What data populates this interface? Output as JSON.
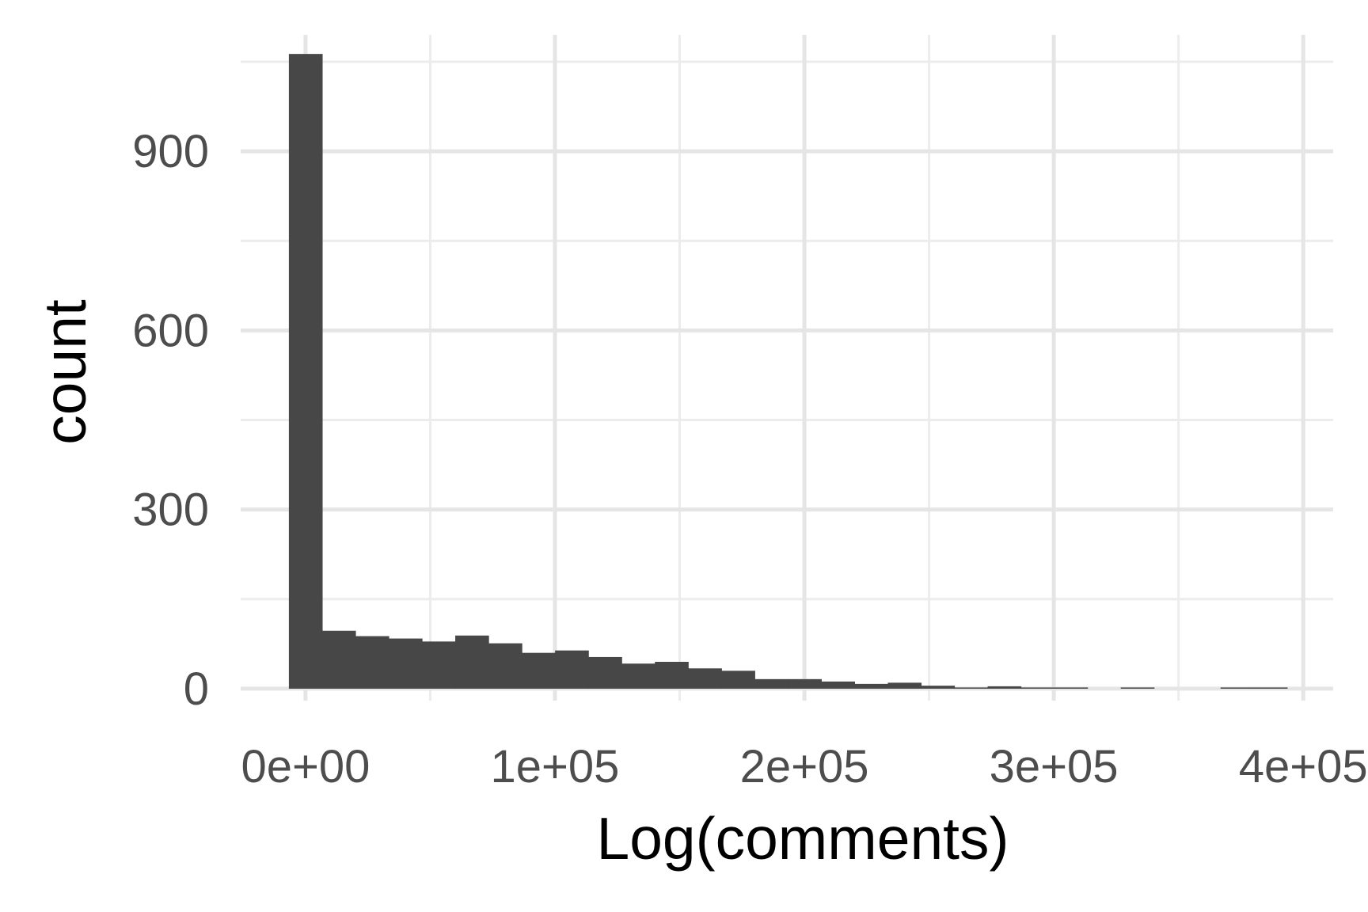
{
  "chart_data": {
    "type": "bar",
    "subtype": "histogram",
    "xlabel": "Log(comments)",
    "ylabel": "count",
    "xlim": [
      -26000,
      412000
    ],
    "ylim": [
      -20,
      1095
    ],
    "x_ticks": [
      0,
      100000,
      200000,
      300000,
      400000
    ],
    "x_tick_labels": [
      "0e+00",
      "1e+05",
      "2e+05",
      "3e+05",
      "4e+05"
    ],
    "y_ticks": [
      0,
      300,
      600,
      900
    ],
    "y_tick_labels": [
      "0",
      "300",
      "600",
      "900"
    ],
    "grid": true,
    "bar_color": "#474747",
    "bins": [
      {
        "x0": -6670,
        "x1": 6670,
        "count": 1063
      },
      {
        "x0": 6670,
        "x1": 20010,
        "count": 97
      },
      {
        "x0": 20010,
        "x1": 33350,
        "count": 88
      },
      {
        "x0": 33350,
        "x1": 46690,
        "count": 84
      },
      {
        "x0": 46690,
        "x1": 60030,
        "count": 79
      },
      {
        "x0": 60030,
        "x1": 73370,
        "count": 89
      },
      {
        "x0": 73370,
        "x1": 86710,
        "count": 76
      },
      {
        "x0": 86710,
        "x1": 100050,
        "count": 60
      },
      {
        "x0": 100050,
        "x1": 113390,
        "count": 64
      },
      {
        "x0": 113390,
        "x1": 126730,
        "count": 53
      },
      {
        "x0": 126730,
        "x1": 140070,
        "count": 42
      },
      {
        "x0": 140070,
        "x1": 153410,
        "count": 45
      },
      {
        "x0": 153410,
        "x1": 166750,
        "count": 34
      },
      {
        "x0": 166750,
        "x1": 180090,
        "count": 30
      },
      {
        "x0": 180090,
        "x1": 193430,
        "count": 16
      },
      {
        "x0": 193430,
        "x1": 206770,
        "count": 16
      },
      {
        "x0": 206770,
        "x1": 220110,
        "count": 12
      },
      {
        "x0": 220110,
        "x1": 233450,
        "count": 8
      },
      {
        "x0": 233450,
        "x1": 246790,
        "count": 10
      },
      {
        "x0": 246790,
        "x1": 260130,
        "count": 5
      },
      {
        "x0": 260130,
        "x1": 273470,
        "count": 2
      },
      {
        "x0": 273470,
        "x1": 286810,
        "count": 4
      },
      {
        "x0": 286810,
        "x1": 300150,
        "count": 2
      },
      {
        "x0": 300150,
        "x1": 313490,
        "count": 2
      },
      {
        "x0": 313490,
        "x1": 326830,
        "count": 0
      },
      {
        "x0": 326830,
        "x1": 340170,
        "count": 2
      },
      {
        "x0": 340170,
        "x1": 353510,
        "count": 0
      },
      {
        "x0": 353510,
        "x1": 366850,
        "count": 0
      },
      {
        "x0": 366850,
        "x1": 380190,
        "count": 2
      },
      {
        "x0": 380190,
        "x1": 393530,
        "count": 2
      }
    ]
  }
}
